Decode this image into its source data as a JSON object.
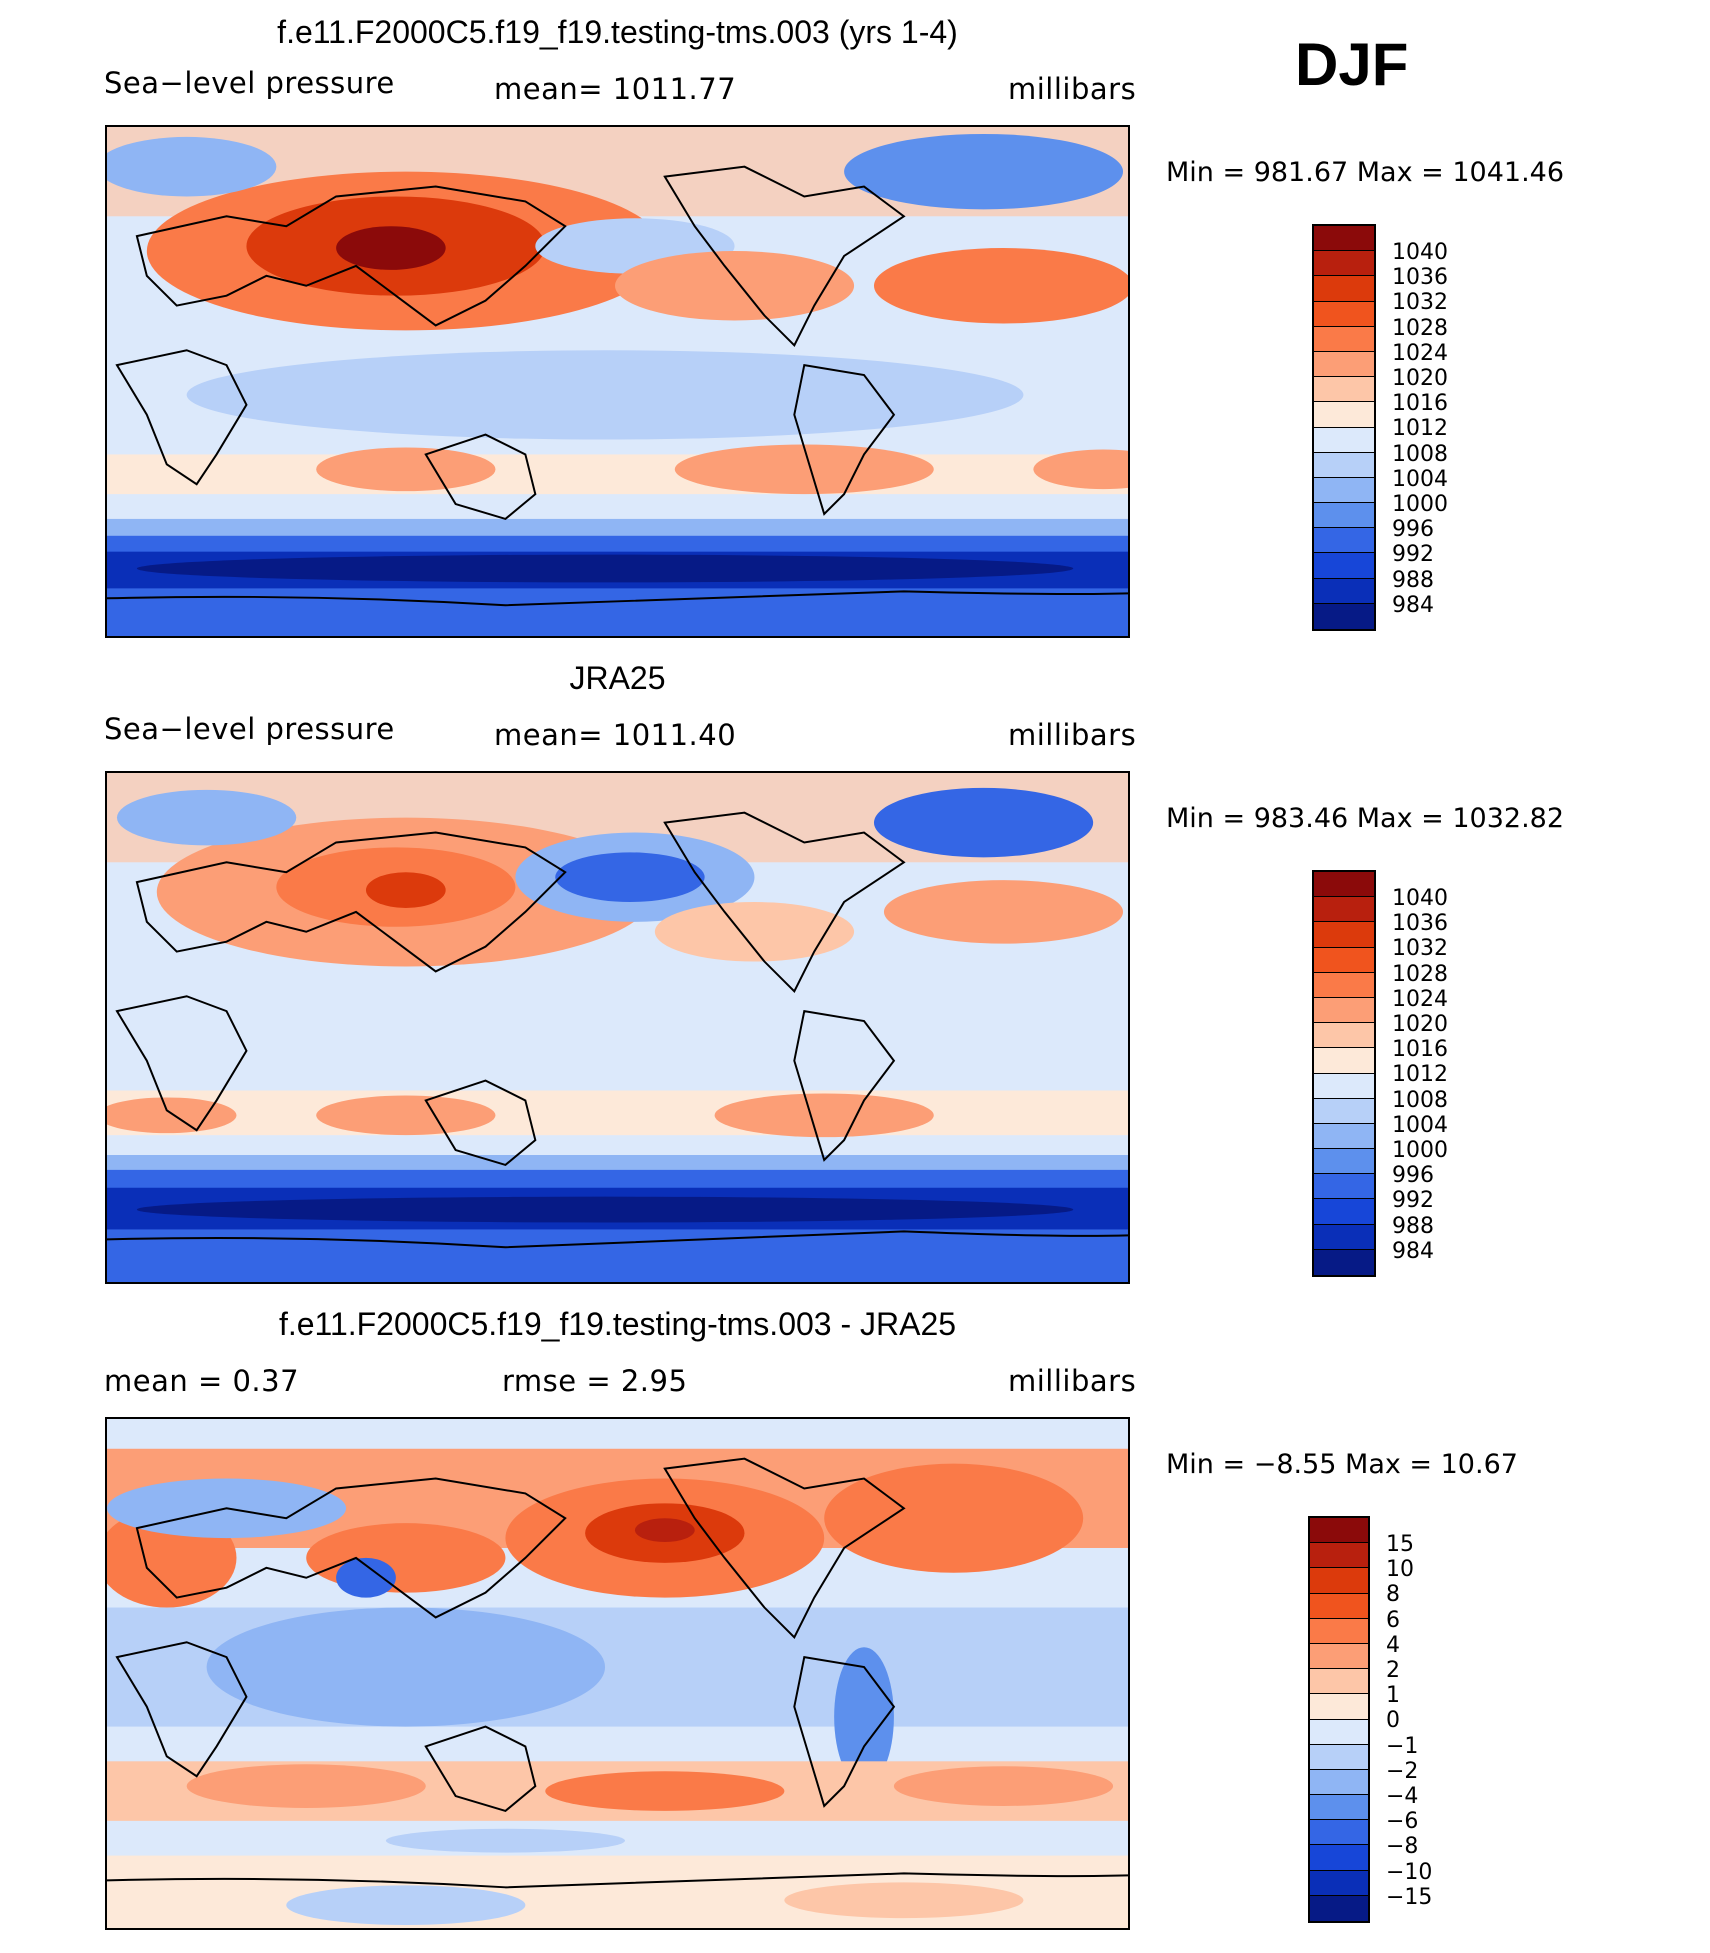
{
  "season": "DJF",
  "panels": [
    {
      "title": "f.e11.F2000C5.f19_f19.testing-tms.003 (yrs 1-4)",
      "left_label": "Sea−level pressure",
      "center_label": "mean=  1011.77",
      "units": "millibars",
      "minmax": "Min  =  981.67  Max  =  1041.46"
    },
    {
      "title": "JRA25",
      "left_label": "Sea−level pressure",
      "center_label": "mean=  1011.40",
      "units": "millibars",
      "minmax": "Min  =  983.46  Max  =  1032.82"
    },
    {
      "title": "f.e11.F2000C5.f19_f19.testing-tms.003 - JRA25",
      "left_label": "mean  =     0.37",
      "center_label": "rmse  =     2.95",
      "units": "millibars",
      "minmax": "Min  =    −8.55  Max  =    10.67"
    }
  ],
  "colorbars": {
    "pressure": {
      "labels": [
        "1040",
        "1036",
        "1032",
        "1028",
        "1024",
        "1020",
        "1016",
        "1012",
        "1008",
        "1004",
        "1000",
        "996",
        "992",
        "988",
        "984"
      ],
      "colors": [
        "#8b0a0a",
        "#b8200e",
        "#dc3a0c",
        "#f0541e",
        "#fa7a48",
        "#fc9e76",
        "#fdc6a8",
        "#fde9d9",
        "#dce9fb",
        "#b7d0f8",
        "#8fb5f4",
        "#5d90ed",
        "#3466e5",
        "#1746d8",
        "#0a2fb8",
        "#061a86"
      ]
    },
    "difference": {
      "labels": [
        "15",
        "10",
        "8",
        "6",
        "4",
        "2",
        "1",
        "0",
        "−1",
        "−2",
        "−4",
        "−6",
        "−8",
        "−10",
        "−15"
      ],
      "colors": [
        "#8b0a0a",
        "#b8200e",
        "#dc3a0c",
        "#f0541e",
        "#fa7a48",
        "#fc9e76",
        "#fdc6a8",
        "#fde9d9",
        "#dce9fb",
        "#b7d0f8",
        "#8fb5f4",
        "#5d90ed",
        "#3466e5",
        "#1746d8",
        "#0a2fb8",
        "#061a86"
      ]
    }
  }
}
